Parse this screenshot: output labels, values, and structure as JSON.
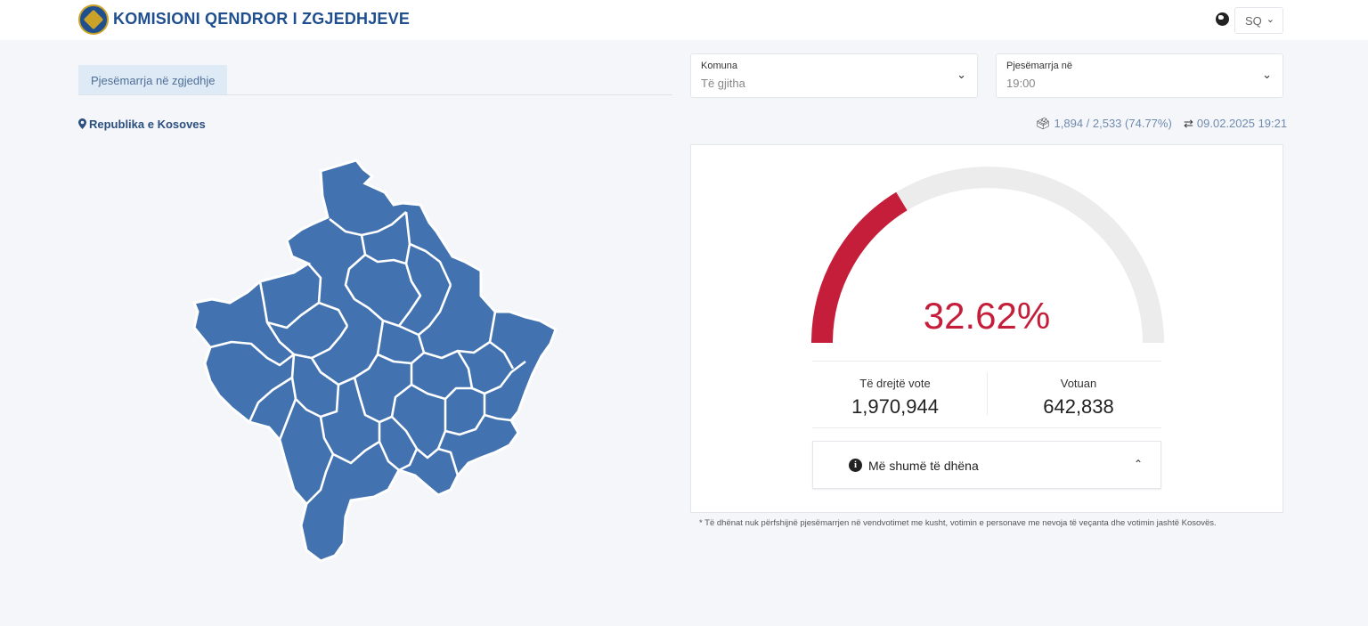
{
  "header": {
    "title": "KOMISIONI QENDROR I ZGJEDHJEVE",
    "language": "SQ"
  },
  "tabs": [
    {
      "label": "Pjesëmarrja në zgjedhje",
      "active": true
    }
  ],
  "filters": {
    "municipality": {
      "label": "Komuna",
      "value": "Të gjitha"
    },
    "turnout_at": {
      "label": "Pjesëmarrja në",
      "value": "19:00"
    }
  },
  "region": {
    "name": "Republika e Kosoves"
  },
  "stations": {
    "text": "1,894 / 2,533 (74.77%)"
  },
  "updated": {
    "text": "09.02.2025 19:21"
  },
  "turnout": {
    "percent_label": "32.62%",
    "percent": 32.62,
    "eligible_label": "Të drejtë vote",
    "eligible_value": "1,970,944",
    "voted_label": "Votuan",
    "voted_value": "642,838",
    "more_label": "Më shumë të dhëna",
    "gauge_color": "#c41e3a",
    "track_color": "#ececec"
  },
  "map": {
    "fill_color": "#4272b0",
    "border_color": "#ffffff"
  },
  "footnote": "* Të dhënat nuk përfshijnë pjesëmarrjen në vendvotimet me kusht, votimin e personave me nevoja të veçanta dhe votimin jashtë Kosovës."
}
